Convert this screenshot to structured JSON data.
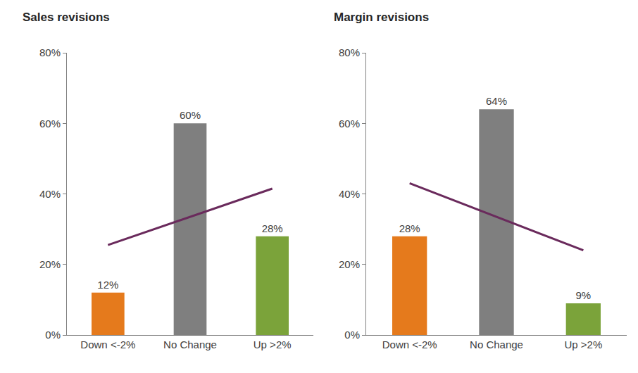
{
  "chart_data": [
    {
      "type": "bar",
      "title": "Sales revisions",
      "categories": [
        "Down <-2%",
        "No Change",
        "Up >2%"
      ],
      "series": [
        {
          "type": "bar",
          "colors": [
            "#e57a1c",
            "#7f7f7f",
            "#7ba33a"
          ],
          "values": [
            12,
            60,
            28
          ],
          "data_labels": true,
          "value_labels": [
            "12%",
            "60%",
            "28%"
          ]
        },
        {
          "type": "line",
          "color": "#6a2a5c",
          "values": [
            25.5,
            33.5,
            41.5
          ]
        }
      ],
      "ylim": [
        0,
        80
      ],
      "yticks": [
        {
          "value": 0,
          "label": "0%"
        },
        {
          "value": 20,
          "label": "20%"
        },
        {
          "value": 40,
          "label": "40%"
        },
        {
          "value": 60,
          "label": "60%"
        },
        {
          "value": 80,
          "label": "80%"
        }
      ],
      "grid": false
    },
    {
      "type": "bar",
      "title": "Margin revisions",
      "categories": [
        "Down <-2%",
        "No Change",
        "Up >2%"
      ],
      "series": [
        {
          "type": "bar",
          "colors": [
            "#e57a1c",
            "#7f7f7f",
            "#7ba33a"
          ],
          "values": [
            28,
            64,
            9
          ],
          "data_labels": true,
          "value_labels": [
            "28%",
            "64%",
            "9%"
          ]
        },
        {
          "type": "line",
          "color": "#6a2a5c",
          "values": [
            43,
            33.5,
            24
          ]
        }
      ],
      "ylim": [
        0,
        80
      ],
      "yticks": [
        {
          "value": 0,
          "label": "0%"
        },
        {
          "value": 20,
          "label": "20%"
        },
        {
          "value": 40,
          "label": "40%"
        },
        {
          "value": 60,
          "label": "60%"
        },
        {
          "value": 80,
          "label": "80%"
        }
      ],
      "grid": false
    }
  ]
}
